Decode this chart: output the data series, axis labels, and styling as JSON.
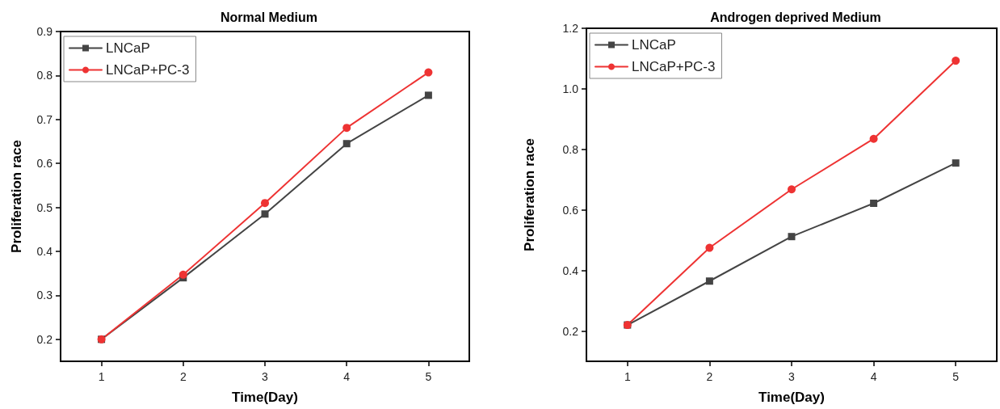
{
  "chart_data": [
    {
      "type": "line",
      "title": "Normal Medium",
      "xlabel": "Time(Day)",
      "ylabel": "Proliferation race",
      "x": [
        1,
        2,
        3,
        4,
        5
      ],
      "xlim": [
        0.5,
        5.5
      ],
      "xticks": [
        1,
        2,
        3,
        4,
        5
      ],
      "ylim": [
        0.15,
        0.9
      ],
      "yticks": [
        0.2,
        0.3,
        0.4,
        0.5,
        0.6,
        0.7,
        0.8,
        0.9
      ],
      "grid": false,
      "legend": "top left",
      "line_style": "solid",
      "series": [
        {
          "name": "LNCaP",
          "color": "#444444",
          "marker": "square",
          "values": [
            0.2,
            0.34,
            0.485,
            0.645,
            0.755
          ]
        },
        {
          "name": "LNCaP+PC-3",
          "color": "#ee3333",
          "marker": "circle",
          "values": [
            0.2,
            0.347,
            0.51,
            0.681,
            0.807
          ]
        }
      ]
    },
    {
      "type": "line",
      "title": "Androgen deprived Medium",
      "xlabel": "Time(Day)",
      "ylabel": "Proliferation race",
      "x": [
        1,
        2,
        3,
        4,
        5
      ],
      "xlim": [
        0.5,
        5.5
      ],
      "xticks": [
        1,
        2,
        3,
        4,
        5
      ],
      "ylim": [
        0.1,
        1.2
      ],
      "yticks": [
        {
          "value": 0.2,
          "label": "0.2"
        },
        {
          "value": 0.4,
          "label": "0.4"
        },
        {
          "value": 0.6,
          "label": "0.6"
        },
        {
          "value": 0.8,
          "label": "0.8"
        },
        {
          "value": 1.0,
          "label": "1.0"
        },
        {
          "value": 1.2,
          "label": "1.2"
        }
      ],
      "grid": false,
      "legend": "top left",
      "line_style": "solid",
      "series": [
        {
          "name": "LNCaP",
          "color": "#444444",
          "marker": "square",
          "values": [
            0.22,
            0.365,
            0.512,
            0.622,
            0.755
          ]
        },
        {
          "name": "LNCaP+PC-3",
          "color": "#ee3333",
          "marker": "circle",
          "values": [
            0.22,
            0.475,
            0.668,
            0.835,
            1.093
          ]
        }
      ]
    }
  ]
}
